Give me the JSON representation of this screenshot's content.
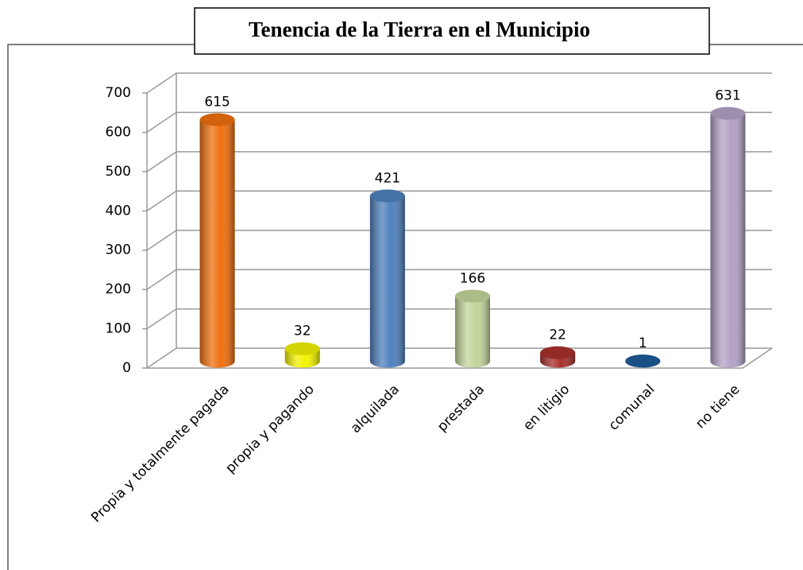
{
  "chart_data": {
    "type": "bar",
    "title": "Tenencia de  la Tierra en el Municipio",
    "categories": [
      "Propia y totalmente pagada",
      "propia y pagando",
      "alquilada",
      "prestada",
      "en litigio",
      "comunal",
      "no tiene"
    ],
    "values": [
      615,
      32,
      421,
      166,
      22,
      1,
      631
    ],
    "colors": [
      "#f07010",
      "#f2f200",
      "#4f81bd",
      "#c3d69b",
      "#a8302c",
      "#1f5c99",
      "#b3a2c7"
    ],
    "ylim": [
      0,
      700
    ],
    "yticks": [
      0,
      100,
      200,
      300,
      400,
      500,
      600,
      700
    ],
    "grid": true
  }
}
